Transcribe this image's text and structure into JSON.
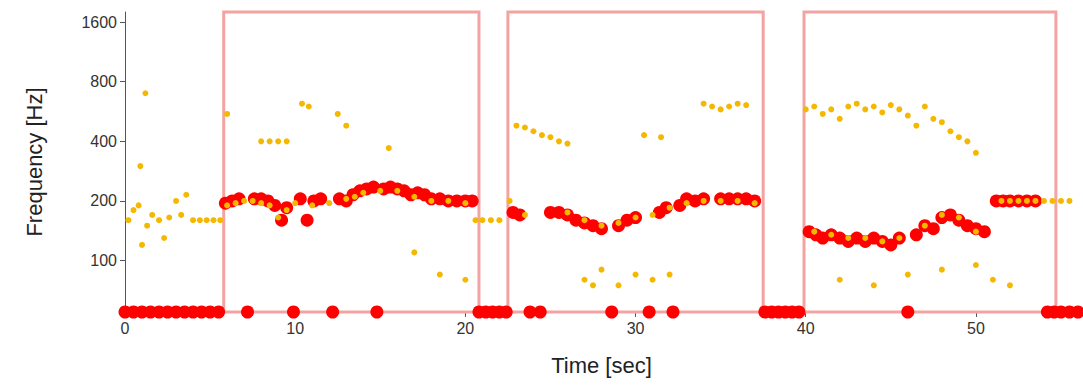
{
  "chart_data": {
    "type": "scatter",
    "x_label": "Time [sec]",
    "y_label": "Frequency [Hz]",
    "xlim": [
      0,
      56
    ],
    "xticks": [
      0,
      10,
      20,
      30,
      40,
      50
    ],
    "ylim": [
      55,
      1800
    ],
    "yticks": [
      100,
      200,
      400,
      800,
      1600
    ],
    "log": "y",
    "grid": false,
    "regions": [
      {
        "x": [
          5.8,
          20.8
        ],
        "color": "#f4a3a3"
      },
      {
        "x": [
          22.5,
          37.5
        ],
        "color": "#f4a3a3"
      },
      {
        "x": [
          39.9,
          54.7
        ],
        "color": "#f4a3a3"
      }
    ],
    "series": [
      {
        "color": "#ff0000",
        "marker": "large",
        "x": [
          0,
          0.5,
          1,
          1.5,
          2,
          2.5,
          3,
          3.5,
          4,
          4.5,
          5,
          5.5,
          7.2,
          9.9,
          12.2,
          14.8,
          20.8,
          21.2,
          21.6,
          22,
          22.4,
          23.8,
          24.4,
          28.6,
          30.8,
          32.2,
          37.6,
          38,
          38.4,
          38.8,
          39.2,
          39.6,
          46,
          54.2,
          54.6,
          55,
          55.5,
          56,
          5.9,
          6.3,
          6.7,
          7.6,
          8,
          8.4,
          8.8,
          9.2,
          9.5,
          10.3,
          10.7,
          11.1,
          11.5,
          12.6,
          13,
          13.4,
          13.8,
          14.2,
          14.6,
          15.2,
          15.6,
          16,
          16.4,
          16.8,
          17.2,
          17.6,
          18,
          18.5,
          19,
          19.5,
          20,
          20.4,
          22.8,
          23.2,
          25,
          25.5,
          26,
          26.5,
          27,
          27.5,
          28,
          29,
          29.5,
          30,
          31.4,
          31.8,
          32.6,
          33,
          33.5,
          34,
          35,
          35.5,
          36,
          36.5,
          37,
          40.2,
          40.6,
          41,
          41.5,
          42,
          42.5,
          43,
          43.5,
          44,
          44.5,
          45,
          45.5,
          46.5,
          47,
          47.5,
          48,
          48.5,
          49,
          49.5,
          50,
          50.5,
          51.2,
          51.6,
          52,
          52.5,
          53,
          53.5
        ],
        "values": [
          55,
          55,
          55,
          55,
          55,
          55,
          55,
          55,
          55,
          55,
          55,
          55,
          55,
          55,
          55,
          55,
          55,
          55,
          55,
          55,
          55,
          55,
          55,
          55,
          55,
          55,
          55,
          55,
          55,
          55,
          55,
          55,
          55,
          55,
          55,
          55,
          55,
          55,
          195,
          200,
          205,
          205,
          205,
          200,
          190,
          160,
          185,
          205,
          160,
          200,
          205,
          205,
          200,
          215,
          225,
          230,
          235,
          230,
          235,
          230,
          225,
          215,
          220,
          215,
          205,
          205,
          200,
          200,
          200,
          200,
          175,
          170,
          175,
          175,
          170,
          160,
          155,
          150,
          145,
          150,
          160,
          165,
          175,
          185,
          190,
          205,
          200,
          205,
          205,
          205,
          205,
          205,
          200,
          140,
          135,
          130,
          135,
          130,
          125,
          130,
          125,
          130,
          125,
          120,
          130,
          135,
          150,
          145,
          165,
          170,
          160,
          150,
          145,
          140,
          200,
          200,
          200,
          200,
          200,
          200
        ]
      },
      {
        "color": "#f5b800",
        "marker": "small",
        "x": [
          0.2,
          0.5,
          0.8,
          0.9,
          1,
          1.2,
          1.3,
          1.6,
          2,
          2.3,
          2.6,
          3,
          3.3,
          3.6,
          4,
          4.4,
          4.8,
          5.2,
          5.6,
          6,
          6.5,
          7,
          7.5,
          8,
          8.5,
          9,
          9.5,
          10,
          11,
          12,
          13,
          13.5,
          14,
          15,
          16,
          17,
          18,
          19,
          20,
          8,
          8.5,
          9,
          9.5,
          10.4,
          10.8,
          12.5,
          13,
          6,
          15.5,
          17,
          18.5,
          20,
          20.6,
          21,
          21.5,
          22,
          22.6,
          23,
          23.5,
          24,
          24.5,
          25,
          25.5,
          26,
          27,
          27.5,
          28,
          29,
          30,
          31,
          32,
          23.5,
          26,
          27,
          28,
          29,
          30,
          31,
          32,
          33,
          34,
          35,
          36,
          37,
          34,
          34.5,
          35,
          35.5,
          36,
          36.5,
          30.5,
          31.5,
          40,
          40.5,
          41,
          41.5,
          42,
          42.5,
          43,
          43.5,
          44,
          44.5,
          45,
          45.5,
          46,
          46.5,
          47,
          47.5,
          48,
          48.5,
          49,
          49.5,
          50,
          40.5,
          41.5,
          42.5,
          43.5,
          44.5,
          45.5,
          47,
          48,
          49,
          50,
          42,
          44,
          46,
          48,
          50,
          51,
          52,
          51.5,
          52,
          52.5,
          53,
          53.5,
          54,
          54.5,
          55,
          55.5
        ],
        "values": [
          160,
          180,
          190,
          300,
          120,
          700,
          150,
          170,
          160,
          130,
          165,
          200,
          170,
          215,
          160,
          160,
          160,
          160,
          160,
          190,
          195,
          200,
          200,
          195,
          190,
          165,
          180,
          195,
          190,
          195,
          205,
          210,
          220,
          225,
          225,
          210,
          200,
          200,
          195,
          400,
          400,
          400,
          400,
          620,
          600,
          550,
          480,
          550,
          370,
          110,
          85,
          80,
          160,
          160,
          160,
          160,
          200,
          480,
          470,
          450,
          430,
          420,
          400,
          390,
          80,
          75,
          90,
          75,
          85,
          80,
          85,
          170,
          175,
          160,
          150,
          155,
          165,
          170,
          185,
          195,
          200,
          200,
          200,
          195,
          620,
          600,
          580,
          600,
          620,
          610,
          430,
          420,
          580,
          600,
          550,
          580,
          520,
          600,
          620,
          580,
          600,
          560,
          610,
          580,
          540,
          480,
          600,
          520,
          500,
          450,
          420,
          400,
          350,
          140,
          135,
          130,
          130,
          125,
          130,
          150,
          170,
          165,
          140,
          80,
          75,
          85,
          90,
          95,
          80,
          75,
          200,
          200,
          200,
          200,
          200,
          200,
          200,
          200,
          200
        ]
      }
    ]
  }
}
